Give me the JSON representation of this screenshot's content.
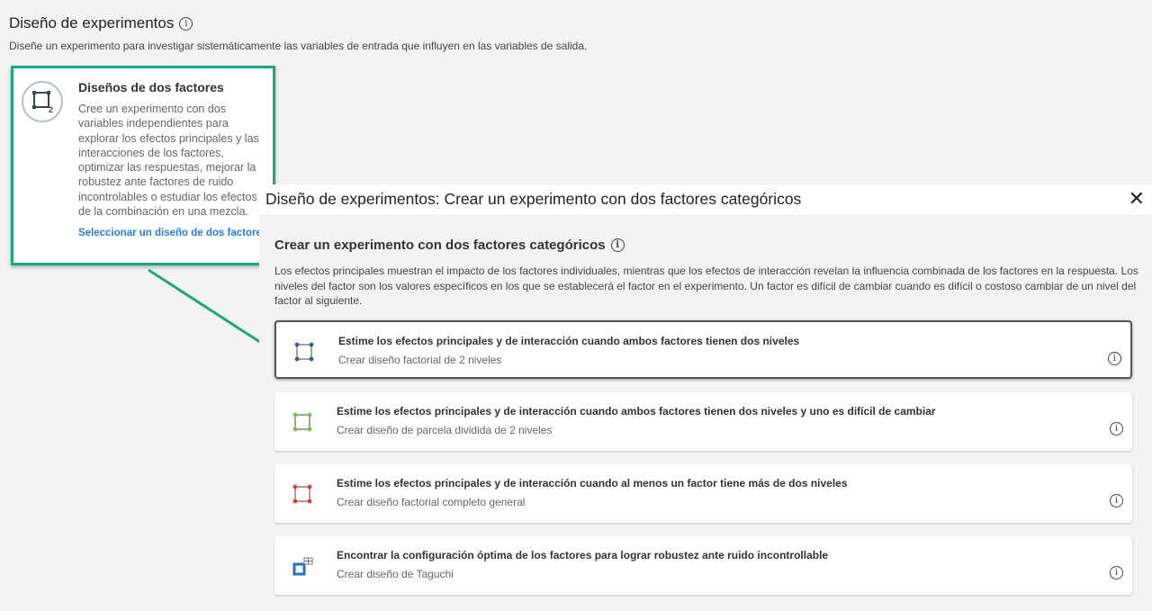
{
  "page": {
    "title": "Diseño de experimentos",
    "subtitle": "Diseñe un experimento para investigar sistemáticamente las variables de entrada que influyen en las variables de salida."
  },
  "card": {
    "title": "Diseños de dos factores",
    "description": "Cree un experimento con dos variables independientes para explorar los efectos principales y las interacciones de los factores, optimizar las respuestas, mejorar la robustez ante factores de ruido incontrolables o estudiar los efectos de la combinación en una mezcla.",
    "link": "Seleccionar un diseño de dos factores",
    "accent": "#1fa67f"
  },
  "dialog": {
    "title": "Diseño de experimentos: Crear un experimento con dos factores categóricos",
    "heading": "Crear un experimento con dos factores categóricos",
    "description": "Los efectos principales muestran el impacto de los factores individuales, mientras que los efectos de interacción revelan la influencia combinada de los factores en la respuesta. Los niveles del factor son los valores específicos en los que se establecerá el factor en el experimento. Un factor es difícil de cambiar cuando es difícil o costoso cambiar de un nivel del factor al siguiente.",
    "options": [
      {
        "title": "Estime los efectos principales y de interacción cuando ambos factores tienen dos niveles",
        "subtitle": "Crear diseño factorial de 2 niveles",
        "color": "#2b5fa8",
        "selected": true
      },
      {
        "title": "Estime los efectos principales y de interacción cuando ambos factores tienen dos niveles y uno es difícil de cambiar",
        "subtitle": "Crear diseño de parcela dividida de 2 niveles",
        "color": "#7cc242"
      },
      {
        "title": "Estime los efectos principales y de interacción cuando al menos un factor tiene más de dos niveles",
        "subtitle": "Crear diseño factorial completo general",
        "color": "#e03c3c"
      },
      {
        "title": "Encontrar la configuración óptima de los factores para lograr robustez ante ruido incontrollable",
        "subtitle": "Crear diseño de Taguchi",
        "color": "#2a6fc0"
      }
    ]
  }
}
